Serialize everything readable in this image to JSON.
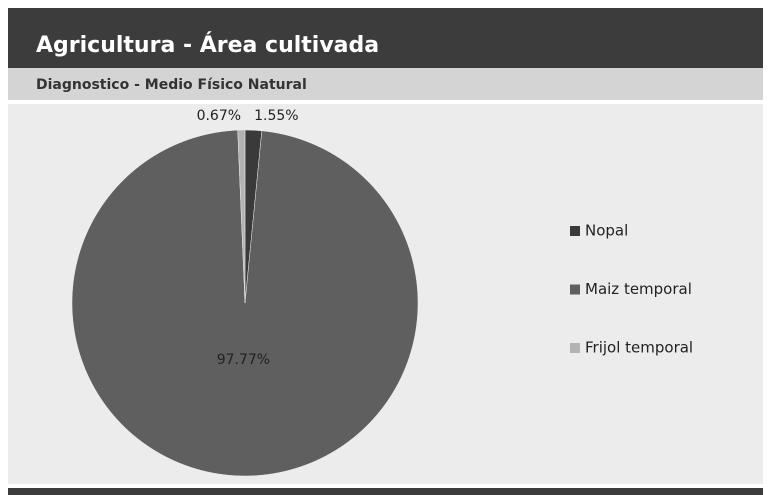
{
  "chart_data": {
    "type": "pie",
    "title": "Agricultura - Área cultivada",
    "subtitle": "Diagnostico - Medio Físico Natural",
    "categories": [
      "Nopal",
      "Maiz temporal",
      "Frijol temporal"
    ],
    "values": [
      1.55,
      97.77,
      0.67
    ],
    "value_labels": [
      "1.55%",
      "97.77%",
      "0.67%"
    ],
    "colors": [
      "#3a3a3a",
      "#5f5f5f",
      "#b3b3b3"
    ],
    "legend": "right"
  }
}
